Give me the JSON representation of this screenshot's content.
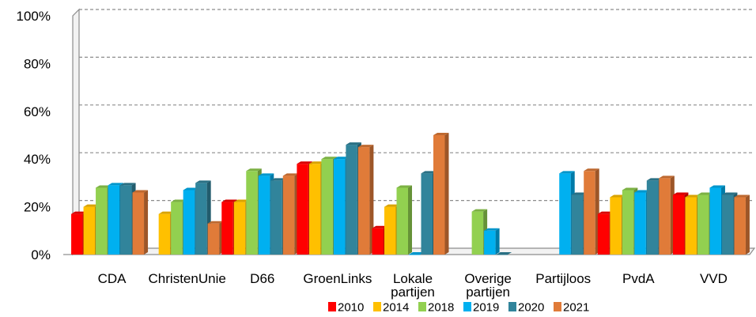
{
  "chart_data": {
    "type": "bar",
    "title": "",
    "xlabel": "",
    "ylabel": "",
    "ylim": [
      0,
      100
    ],
    "yticks": [
      "0%",
      "20%",
      "40%",
      "60%",
      "80%",
      "100%"
    ],
    "grid": true,
    "legend_position": "bottom",
    "categories": [
      [
        "CDA"
      ],
      [
        "ChristenUnie"
      ],
      [
        "D66"
      ],
      [
        "GroenLinks"
      ],
      [
        "Lokale",
        "partijen"
      ],
      [
        "Overige",
        "partijen"
      ],
      [
        "Partijloos"
      ],
      [
        "PvdA"
      ],
      [
        "VVD"
      ]
    ],
    "series": [
      {
        "name": "2010",
        "color": "#ff0000",
        "values": [
          17,
          null,
          22,
          38,
          11,
          null,
          null,
          17,
          25
        ]
      },
      {
        "name": "2014",
        "color": "#ffc000",
        "values": [
          20,
          17,
          22,
          38,
          20,
          null,
          null,
          24,
          24
        ]
      },
      {
        "name": "2018",
        "color": "#92d050",
        "values": [
          28,
          22,
          35,
          40,
          28,
          18,
          null,
          27,
          25
        ]
      },
      {
        "name": "2019",
        "color": "#00b0f0",
        "values": [
          29,
          27,
          33,
          40,
          0,
          10,
          34,
          26,
          28
        ]
      },
      {
        "name": "2020",
        "color": "#31849b",
        "values": [
          29,
          30,
          31,
          46,
          34,
          0,
          25,
          31,
          25
        ]
      },
      {
        "name": "2021",
        "color": "#e07b39",
        "values": [
          26,
          13,
          33,
          45,
          50,
          null,
          35,
          32,
          24
        ]
      }
    ]
  }
}
